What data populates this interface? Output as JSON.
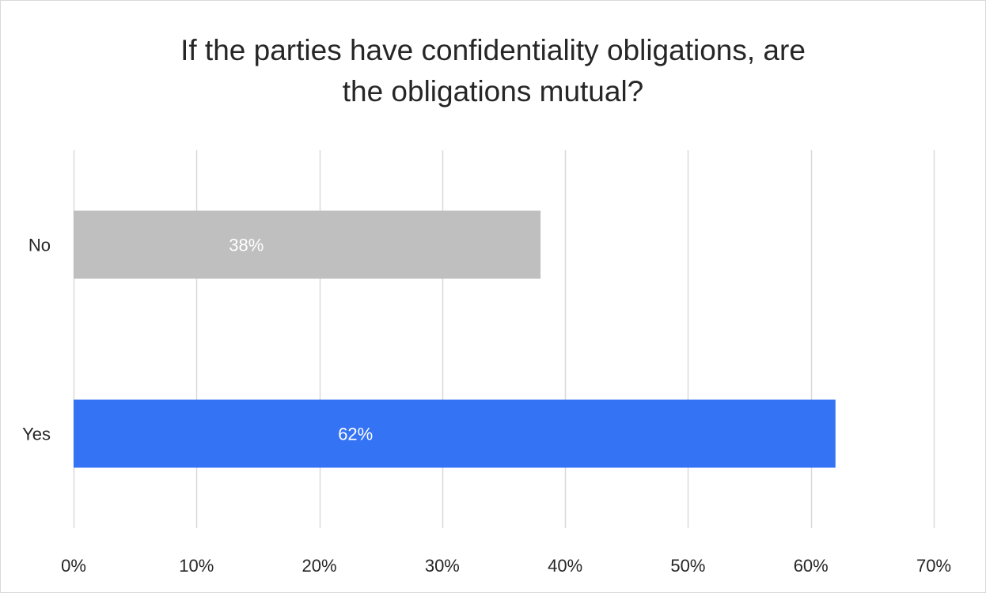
{
  "chart_data": {
    "type": "bar",
    "orientation": "horizontal",
    "title_lines": [
      "If the parties have confidentiality obligations, are",
      "the obligations mutual?"
    ],
    "categories": [
      "No",
      "Yes"
    ],
    "values": [
      38,
      62
    ],
    "data_labels": [
      "38%",
      "62%"
    ],
    "bar_colors": [
      "#bfbfbf",
      "#3473f4"
    ],
    "xlim": [
      0,
      70
    ],
    "x_ticks": [
      0,
      10,
      20,
      30,
      40,
      50,
      60,
      70
    ],
    "x_tick_labels": [
      "0%",
      "10%",
      "20%",
      "30%",
      "40%",
      "50%",
      "60%",
      "70%"
    ],
    "xlabel": "",
    "ylabel": "",
    "grid": "vertical",
    "legend": "none"
  }
}
